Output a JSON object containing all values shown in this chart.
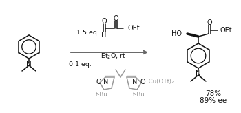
{
  "background_color": "#ffffff",
  "arrow_color": "#666666",
  "text_color": "#111111",
  "gray_color": "#999999",
  "reagent_above": "1.5 eq",
  "reagent_arrow_cond": "Et₂O, rt",
  "catalyst_label": "0.1 eq.",
  "yield_text": "78%",
  "ee_text": "89% ee",
  "cu_text": ".Cu(OTf)₂",
  "tbu_left": "t-Bu",
  "tbu_right": "t-Bu",
  "figsize": [
    3.5,
    1.64
  ],
  "dpi": 100
}
